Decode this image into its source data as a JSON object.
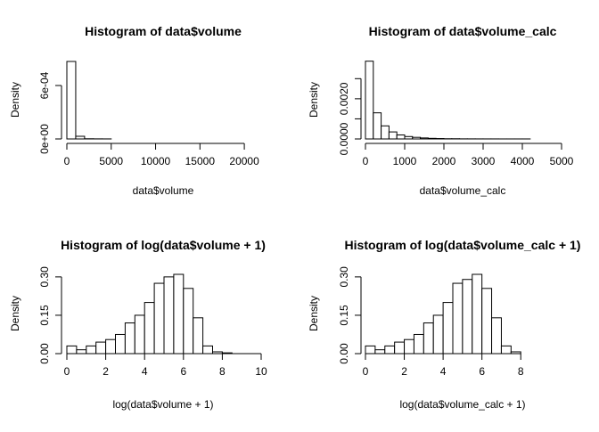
{
  "chart_data": [
    {
      "type": "bar",
      "title": "Histogram of data$volume",
      "xlabel": "data$volume",
      "ylabel": "Density",
      "xlim": [
        0,
        22000
      ],
      "ylim": [
        0,
        0.00088
      ],
      "xticks": [
        0,
        5000,
        10000,
        15000,
        20000
      ],
      "xtick_labels": [
        "0",
        "5000",
        "10000",
        "15000",
        "20000"
      ],
      "yticks": [
        0,
        0.0006
      ],
      "ytick_labels": [
        "0e+00",
        "6e-04"
      ],
      "bin_width": 1000,
      "bin_starts": [
        0,
        1000,
        2000,
        3000,
        4000,
        5000,
        6000,
        7000,
        8000,
        9000,
        10000,
        11000,
        12000,
        13000,
        14000,
        15000,
        16000,
        17000,
        18000,
        19000,
        20000,
        21000
      ],
      "values": [
        0.00087,
        3e-05,
        2e-06,
        1e-06,
        5e-07,
        0,
        0,
        0,
        0,
        0,
        0,
        0,
        0,
        0,
        0,
        0,
        0,
        0,
        0,
        0,
        0,
        0
      ]
    },
    {
      "type": "bar",
      "title": "Histogram of data$volume_calc",
      "xlabel": "data$volume_calc",
      "ylabel": "Density",
      "xlim": [
        0,
        5000
      ],
      "ylim": [
        0,
        0.0039
      ],
      "xticks": [
        0,
        1000,
        2000,
        3000,
        4000,
        5000
      ],
      "xtick_labels": [
        "0",
        "1000",
        "2000",
        "3000",
        "4000",
        "5000"
      ],
      "yticks": [
        0,
        0.001,
        0.002,
        0.003
      ],
      "ytick_labels": [
        "0.0000",
        "",
        "0.0020",
        ""
      ],
      "bin_width": 200,
      "bin_starts": [
        0,
        200,
        400,
        600,
        800,
        1000,
        1200,
        1400,
        1600,
        1800,
        2000,
        2200,
        2400,
        2600,
        2800,
        3000,
        3200,
        3400,
        3600,
        3800,
        4000,
        4200,
        4400,
        4600,
        4800
      ],
      "values": [
        0.00387,
        0.0013,
        0.00065,
        0.00035,
        0.0002,
        0.00012,
        8e-05,
        5e-05,
        3e-05,
        2e-05,
        1e-05,
        1e-05,
        5e-06,
        4e-06,
        3e-06,
        2e-06,
        2e-06,
        1e-06,
        1e-06,
        1e-06,
        1e-06,
        0,
        0,
        0,
        0
      ]
    },
    {
      "type": "bar",
      "title": "Histogram of log(data$volume + 1)",
      "xlabel": "log(data$volume + 1)",
      "ylabel": "Density",
      "xlim": [
        0,
        10
      ],
      "ylim": [
        0,
        0.31
      ],
      "xticks": [
        0,
        2,
        4,
        6,
        8,
        10
      ],
      "xtick_labels": [
        "0",
        "2",
        "4",
        "6",
        "8",
        "10"
      ],
      "yticks": [
        0,
        0.15,
        0.3
      ],
      "ytick_labels": [
        "0.00",
        "0.15",
        "0.30"
      ],
      "bin_width": 0.5,
      "bin_starts": [
        0,
        0.5,
        1,
        1.5,
        2,
        2.5,
        3,
        3.5,
        4,
        4.5,
        5,
        5.5,
        6,
        6.5,
        7,
        7.5,
        8
      ],
      "values": [
        0.03,
        0.015,
        0.03,
        0.045,
        0.055,
        0.075,
        0.12,
        0.15,
        0.2,
        0.275,
        0.3,
        0.31,
        0.255,
        0.14,
        0.03,
        0.007,
        0.003
      ]
    },
    {
      "type": "bar",
      "title": "Histogram of log(data$volume_calc + 1)",
      "xlabel": "log(data$volume_calc + 1)",
      "ylabel": "Density",
      "xlim": [
        0,
        9
      ],
      "ylim": [
        0,
        0.31
      ],
      "xticks": [
        0,
        2,
        4,
        6,
        8
      ],
      "xtick_labels": [
        "0",
        "2",
        "4",
        "6",
        "8"
      ],
      "yticks": [
        0,
        0.15,
        0.3
      ],
      "ytick_labels": [
        "0.00",
        "0.15",
        "0.30"
      ],
      "bin_width": 0.5,
      "bin_starts": [
        0,
        0.5,
        1,
        1.5,
        2,
        2.5,
        3,
        3.5,
        4,
        4.5,
        5,
        5.5,
        6,
        6.5,
        7,
        7.5,
        8
      ],
      "values": [
        0.03,
        0.015,
        0.03,
        0.045,
        0.055,
        0.075,
        0.12,
        0.15,
        0.2,
        0.275,
        0.29,
        0.31,
        0.255,
        0.14,
        0.03,
        0.007,
        0
      ]
    }
  ]
}
